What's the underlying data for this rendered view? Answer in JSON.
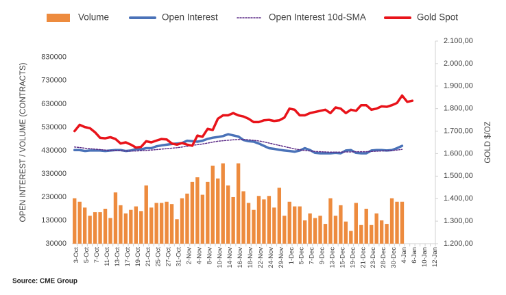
{
  "chart_data": {
    "type": "combo",
    "source": "Source: CME Group",
    "y_label": "OPEN INTEREST / VOLUME (CONTRACTS)",
    "y2_label": "GOLD $/OZ",
    "categories": [
      "3-Oct",
      null,
      "5-Oct",
      null,
      "7-Oct",
      null,
      "11-Oct",
      null,
      "13-Oct",
      null,
      "17-Oct",
      null,
      "19-Oct",
      null,
      "21-Oct",
      null,
      "25-Oct",
      null,
      "27-Oct",
      null,
      "31-Oct",
      null,
      "2-Nov",
      null,
      "4-Nov",
      null,
      "8-Nov",
      null,
      "10-Nov",
      null,
      "14-Nov",
      null,
      "16-Nov",
      null,
      "18-Nov",
      null,
      "22-Nov",
      null,
      "24-Nov",
      null,
      "29-Nov",
      null,
      "1-Dec",
      null,
      "5-Dec",
      null,
      "7-Dec",
      null,
      "9-Dec",
      null,
      "13-Dec",
      null,
      "15-Dec",
      null,
      "19-Dec",
      null,
      "21-Dec",
      null,
      "23-Dec",
      null,
      "28-Dec",
      null,
      "30-Dec",
      null,
      "4-Jan",
      null,
      "6-Jan",
      null,
      "10-Jan",
      null,
      "12-Jan"
    ],
    "ylim": [
      30000,
      900000
    ],
    "yticks": [
      30000,
      130000,
      230000,
      330000,
      430000,
      530000,
      630000,
      730000,
      830000
    ],
    "y2lim": [
      1200,
      2100
    ],
    "y2ticks": [
      {
        "value": 1200,
        "label": "1.200,00"
      },
      {
        "value": 1300,
        "label": "1.300,00"
      },
      {
        "value": 1400,
        "label": "1.400,00"
      },
      {
        "value": 1500,
        "label": "1.500,00"
      },
      {
        "value": 1600,
        "label": "1.600,00"
      },
      {
        "value": 1700,
        "label": "1.700,00"
      },
      {
        "value": 1800,
        "label": "1.800,00"
      },
      {
        "value": 1900,
        "label": "1.900,00"
      },
      {
        "value": 2000,
        "label": "2.000,00"
      },
      {
        "value": 2100,
        "label": "2.100,00"
      }
    ],
    "grid": false,
    "legend": "top",
    "series": [
      {
        "name": "Volume",
        "type": "bar",
        "color": "#ed8b3e",
        "values": [
          225000,
          210000,
          185000,
          150000,
          165000,
          165000,
          180000,
          140000,
          250000,
          195000,
          160000,
          175000,
          190000,
          170000,
          280000,
          185000,
          205000,
          205000,
          210000,
          200000,
          135000,
          225000,
          245000,
          295000,
          315000,
          240000,
          295000,
          365000,
          310000,
          375000,
          280000,
          230000,
          375000,
          255000,
          205000,
          175000,
          235000,
          220000,
          235000,
          185000,
          270000,
          150000,
          210000,
          190000,
          190000,
          130000,
          160000,
          140000,
          150000,
          115000,
          225000,
          150000,
          195000,
          125000,
          85000,
          205000,
          110000,
          180000,
          110000,
          160000,
          130000,
          115000,
          225000,
          210000,
          210000,
          null,
          null,
          null,
          null,
          null,
          null
        ]
      },
      {
        "name": "Open Interest",
        "type": "line",
        "color": "#4a72b8",
        "values": [
          432000,
          432000,
          428000,
          430000,
          430000,
          430000,
          428000,
          430000,
          432000,
          432000,
          428000,
          430000,
          436000,
          435000,
          440000,
          440000,
          448000,
          452000,
          455000,
          458000,
          460000,
          462000,
          472000,
          470000,
          468000,
          472000,
          480000,
          485000,
          488000,
          492000,
          500000,
          495000,
          490000,
          475000,
          470000,
          468000,
          460000,
          450000,
          440000,
          437000,
          433000,
          430000,
          428000,
          425000,
          430000,
          440000,
          432000,
          420000,
          418000,
          418000,
          418000,
          420000,
          418000,
          430000,
          432000,
          420000,
          418000,
          418000,
          430000,
          432000,
          432000,
          430000,
          432000,
          440000,
          450000,
          null,
          null,
          null,
          null,
          null,
          null
        ]
      },
      {
        "name": "Open Interest 10d-SMA",
        "type": "line",
        "dash": true,
        "color": "#5b2a86",
        "values": [
          445000,
          443000,
          440000,
          438000,
          436000,
          434000,
          432000,
          430000,
          430000,
          429000,
          428000,
          428000,
          428000,
          429000,
          430000,
          432000,
          434000,
          436000,
          438000,
          440000,
          442000,
          445000,
          448000,
          452000,
          455000,
          458000,
          462000,
          466000,
          470000,
          472000,
          474000,
          476000,
          477000,
          477000,
          476000,
          474000,
          471000,
          467000,
          462000,
          457000,
          452000,
          447000,
          442000,
          437000,
          433000,
          430000,
          428000,
          426000,
          425000,
          424000,
          423000,
          423000,
          423000,
          424000,
          424000,
          425000,
          425000,
          425000,
          426000,
          427000,
          428000,
          429000,
          430000,
          432000,
          435000,
          null,
          null,
          null,
          null,
          null,
          null
        ]
      },
      {
        "name": "Gold Spot",
        "type": "line",
        "axis": "y2",
        "color": "#e8131a",
        "values": [
          1700,
          1728,
          1718,
          1713,
          1695,
          1670,
          1668,
          1673,
          1665,
          1645,
          1650,
          1640,
          1627,
          1630,
          1655,
          1650,
          1658,
          1665,
          1663,
          1645,
          1640,
          1647,
          1640,
          1635,
          1680,
          1675,
          1710,
          1705,
          1755,
          1770,
          1770,
          1780,
          1770,
          1765,
          1755,
          1740,
          1740,
          1748,
          1750,
          1745,
          1748,
          1760,
          1800,
          1795,
          1770,
          1770,
          1780,
          1785,
          1790,
          1795,
          1780,
          1805,
          1800,
          1780,
          1795,
          1790,
          1815,
          1815,
          1795,
          1800,
          1810,
          1808,
          1815,
          1825,
          1858,
          1830,
          1835,
          null,
          null,
          null,
          null
        ]
      }
    ]
  }
}
